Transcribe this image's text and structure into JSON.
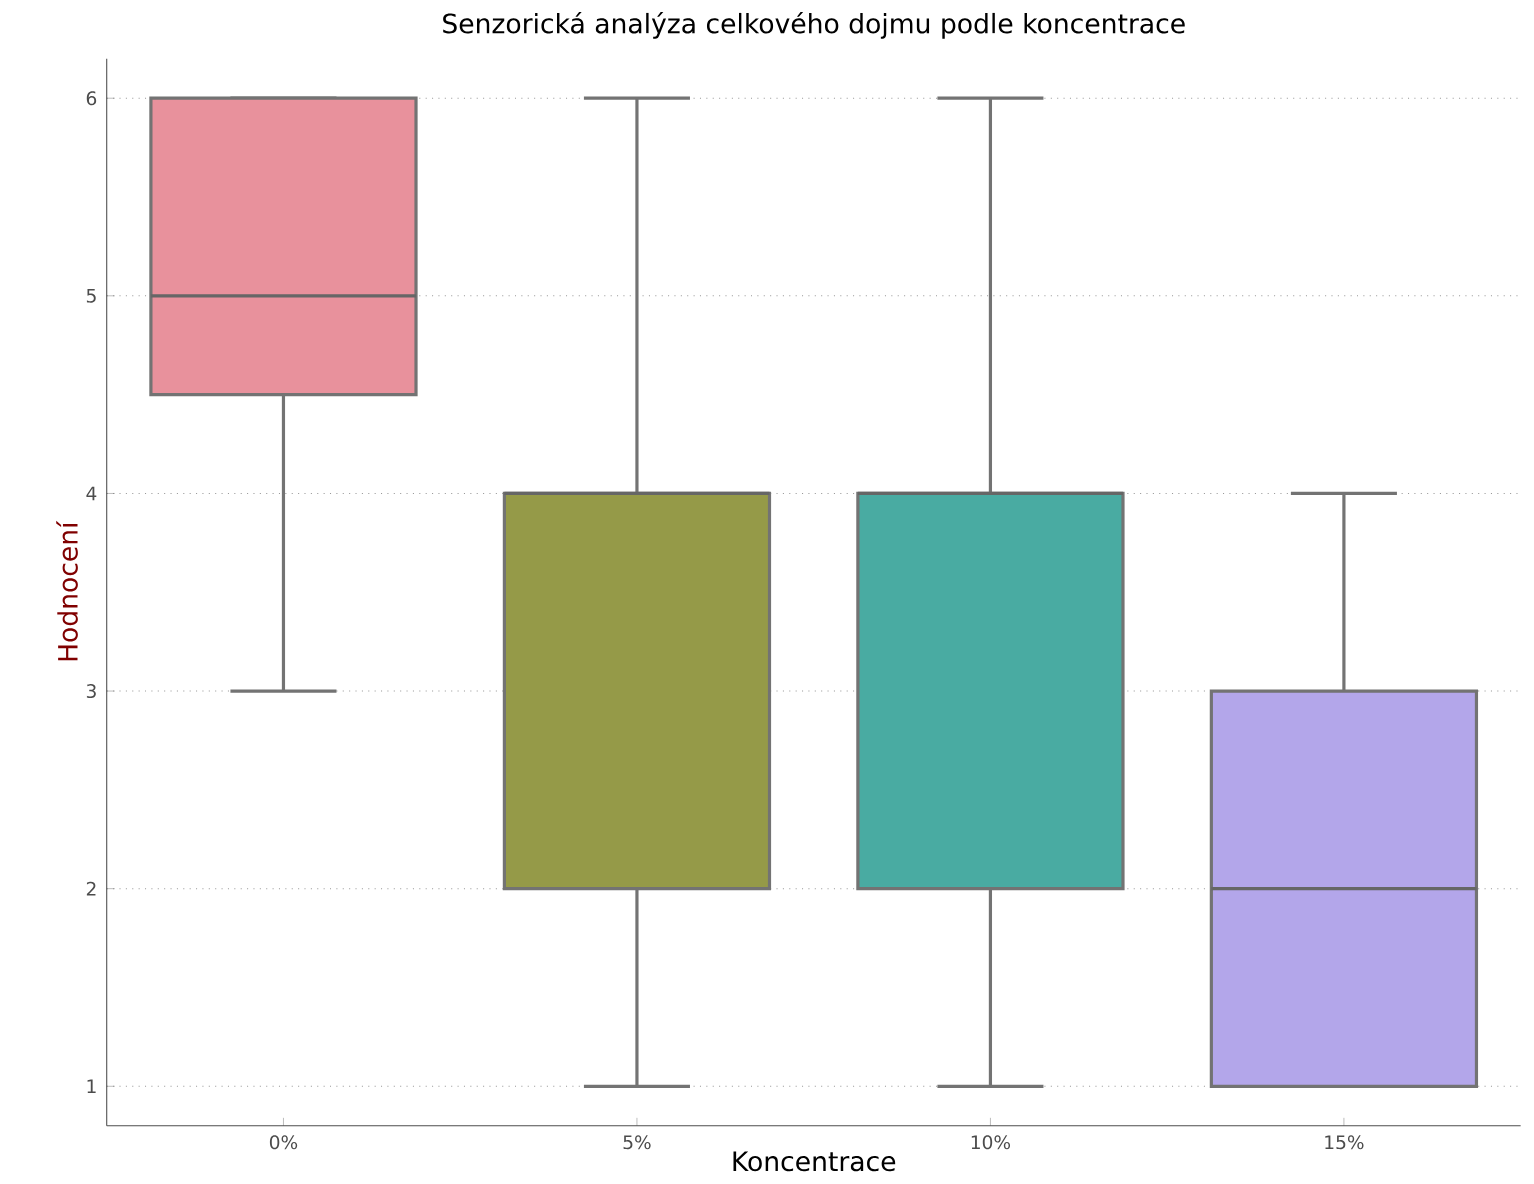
{
  "chart_data": {
    "type": "box",
    "title": "Senzorická analýza celkového dojmu podle koncentrace",
    "xlabel": "Koncentrace",
    "ylabel": "Hodnocení",
    "categories": [
      "0%",
      "5%",
      "10%",
      "15%"
    ],
    "colors": [
      "#e8919c",
      "#959a48",
      "#49aba2",
      "#b3a6ea"
    ],
    "boxes": [
      {
        "low": 3,
        "q1": 4.5,
        "median": 5,
        "q3": 6,
        "high": 6
      },
      {
        "low": 1,
        "q1": 2,
        "median": 4,
        "q3": 4,
        "high": 6
      },
      {
        "low": 1,
        "q1": 2,
        "median": 4,
        "q3": 4,
        "high": 6
      },
      {
        "low": 1,
        "q1": 1,
        "median": 2,
        "q3": 3,
        "high": 4
      }
    ],
    "ylim": [
      0.8,
      6.2
    ],
    "yticks": [
      1,
      2,
      3,
      4,
      5,
      6
    ],
    "grid": "y"
  }
}
